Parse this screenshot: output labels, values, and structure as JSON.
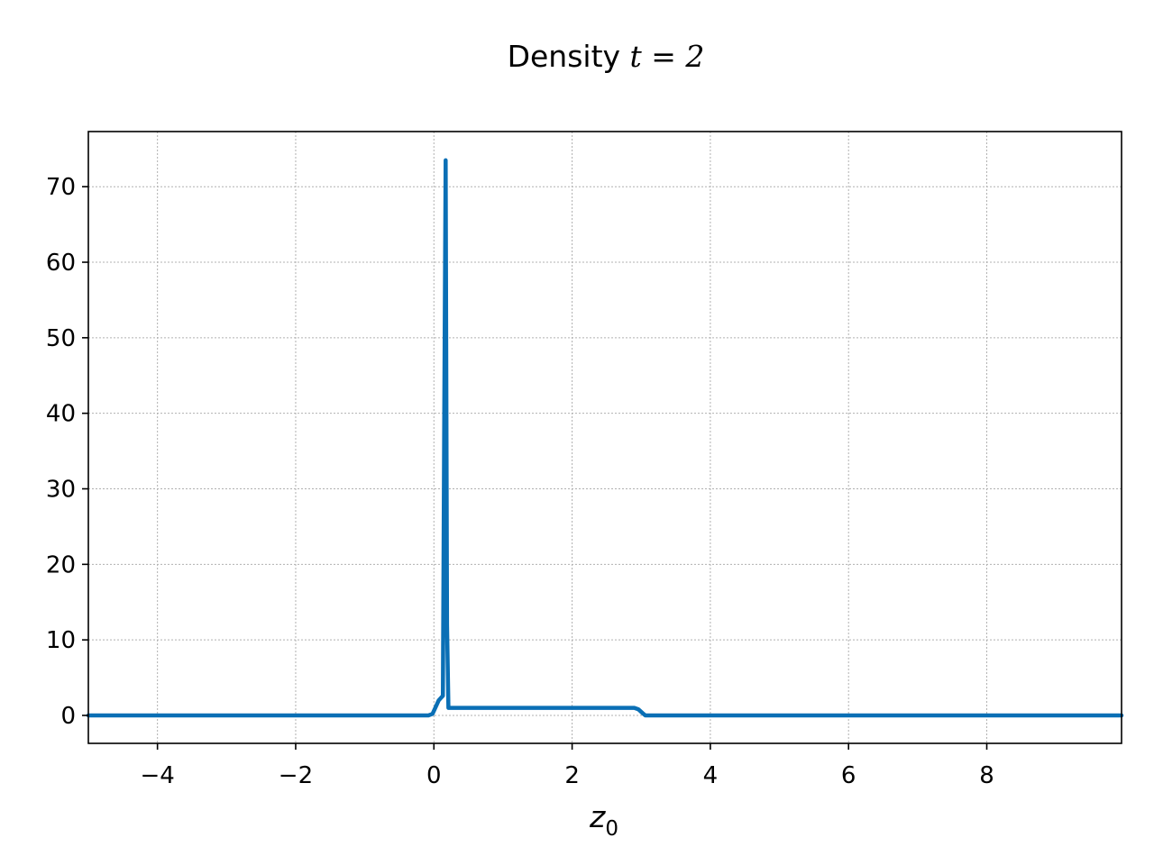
{
  "chart_data": {
    "type": "line",
    "title_prefix": "Density ",
    "title_math": "t = 2",
    "xlabel_base": "z",
    "xlabel_sub": "0",
    "xlim": [
      -5,
      9.95
    ],
    "ylim": [
      -3.7,
      77.3
    ],
    "grid": true,
    "legend": "none",
    "color": "#0a6fb5",
    "xticks": [
      -4,
      -2,
      0,
      2,
      4,
      6,
      8
    ],
    "xtick_labels": [
      "−4",
      "−2",
      "0",
      "2",
      "4",
      "6",
      "8"
    ],
    "yticks": [
      0,
      10,
      20,
      30,
      40,
      50,
      60,
      70
    ],
    "ytick_labels": [
      "0",
      "10",
      "20",
      "30",
      "40",
      "50",
      "60",
      "70"
    ],
    "series": [
      {
        "x": [
          -5,
          -0.08,
          -0.02,
          0.03,
          0.07,
          0.11,
          0.13,
          0.15,
          0.17,
          0.19,
          0.21,
          0.5,
          1.0,
          2.0,
          2.9,
          2.96,
          3.02,
          3.06,
          9.95
        ],
        "y": [
          0,
          0,
          0.2,
          1.2,
          2.0,
          2.4,
          2.6,
          40,
          73.5,
          12,
          1.0,
          1.0,
          1.0,
          1.0,
          1.0,
          0.8,
          0.3,
          0,
          0
        ]
      }
    ]
  }
}
